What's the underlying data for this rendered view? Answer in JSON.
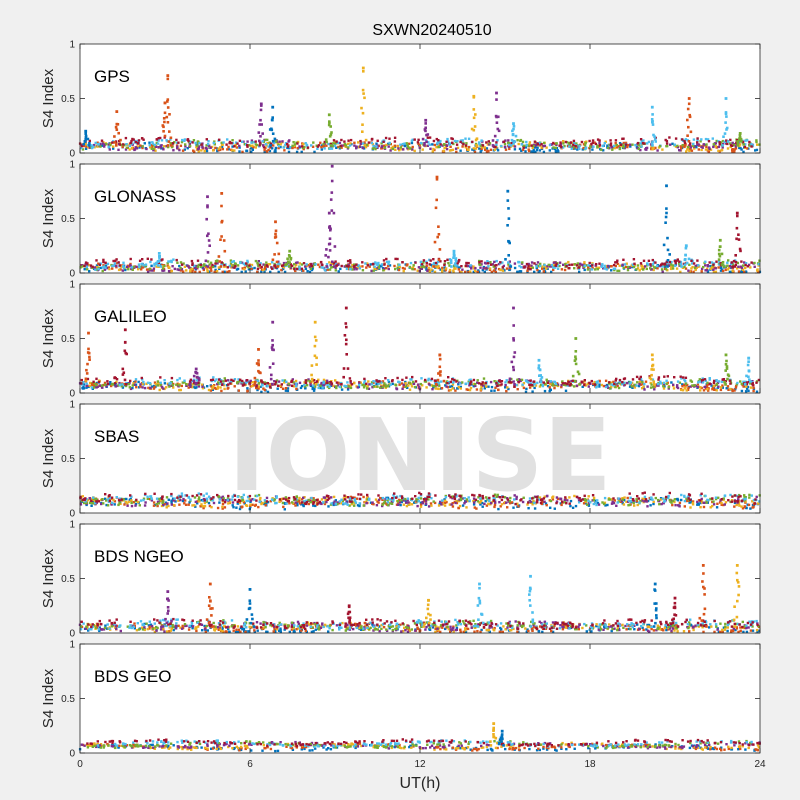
{
  "chart_data": {
    "type": "scatter",
    "title": "SXWN20240510",
    "xlabel": "UT(h)",
    "xlim": [
      0,
      24
    ],
    "xticks": [
      "0",
      "6",
      "12",
      "18",
      "24"
    ],
    "ylabel": "S4 Index",
    "ylim": [
      0,
      1
    ],
    "yticks": [
      "0",
      "0.5",
      "1"
    ],
    "watermark": "IONISE",
    "grid": false,
    "colors": [
      "#0072bd",
      "#d95319",
      "#edb120",
      "#7e2f8e",
      "#77ac30",
      "#4dbeee",
      "#a2142f"
    ],
    "panels": [
      {
        "label": "GPS",
        "baseline": 0.07,
        "peaks": [
          {
            "x": 0.2,
            "y": 0.2,
            "series": 0
          },
          {
            "x": 1.3,
            "y": 0.38,
            "series": 1
          },
          {
            "x": 3.0,
            "y": 0.46,
            "series": 1
          },
          {
            "x": 3.1,
            "y": 0.71,
            "series": 1
          },
          {
            "x": 6.4,
            "y": 0.45,
            "series": 3
          },
          {
            "x": 6.8,
            "y": 0.42,
            "series": 0
          },
          {
            "x": 8.8,
            "y": 0.35,
            "series": 4
          },
          {
            "x": 10.0,
            "y": 0.78,
            "series": 2
          },
          {
            "x": 12.2,
            "y": 0.3,
            "series": 3
          },
          {
            "x": 13.9,
            "y": 0.52,
            "series": 2
          },
          {
            "x": 14.7,
            "y": 0.55,
            "series": 3
          },
          {
            "x": 15.3,
            "y": 0.27,
            "series": 5
          },
          {
            "x": 20.2,
            "y": 0.42,
            "series": 5
          },
          {
            "x": 21.5,
            "y": 0.5,
            "series": 1
          },
          {
            "x": 22.8,
            "y": 0.5,
            "series": 5
          },
          {
            "x": 23.3,
            "y": 0.18,
            "series": 4
          }
        ]
      },
      {
        "label": "GLONASS",
        "baseline": 0.06,
        "peaks": [
          {
            "x": 2.8,
            "y": 0.18,
            "series": 5
          },
          {
            "x": 4.5,
            "y": 0.7,
            "series": 3
          },
          {
            "x": 5.0,
            "y": 0.73,
            "series": 1
          },
          {
            "x": 6.9,
            "y": 0.47,
            "series": 1
          },
          {
            "x": 7.4,
            "y": 0.2,
            "series": 4
          },
          {
            "x": 8.8,
            "y": 0.55,
            "series": 3
          },
          {
            "x": 8.9,
            "y": 0.98,
            "series": 3
          },
          {
            "x": 12.6,
            "y": 0.88,
            "series": 1
          },
          {
            "x": 13.2,
            "y": 0.2,
            "series": 5
          },
          {
            "x": 15.1,
            "y": 0.75,
            "series": 0
          },
          {
            "x": 20.7,
            "y": 0.8,
            "series": 0
          },
          {
            "x": 21.4,
            "y": 0.25,
            "series": 5
          },
          {
            "x": 22.6,
            "y": 0.3,
            "series": 4
          },
          {
            "x": 23.2,
            "y": 0.55,
            "series": 6
          }
        ]
      },
      {
        "label": "GALILEO",
        "baseline": 0.08,
        "peaks": [
          {
            "x": 0.3,
            "y": 0.55,
            "series": 1
          },
          {
            "x": 1.6,
            "y": 0.58,
            "series": 6
          },
          {
            "x": 4.1,
            "y": 0.22,
            "series": 3
          },
          {
            "x": 6.3,
            "y": 0.4,
            "series": 1
          },
          {
            "x": 6.8,
            "y": 0.65,
            "series": 3
          },
          {
            "x": 8.3,
            "y": 0.65,
            "series": 2
          },
          {
            "x": 9.4,
            "y": 0.78,
            "series": 6
          },
          {
            "x": 12.7,
            "y": 0.35,
            "series": 1
          },
          {
            "x": 15.3,
            "y": 0.78,
            "series": 3
          },
          {
            "x": 16.2,
            "y": 0.3,
            "series": 5
          },
          {
            "x": 17.5,
            "y": 0.5,
            "series": 4
          },
          {
            "x": 20.2,
            "y": 0.35,
            "series": 2
          },
          {
            "x": 22.8,
            "y": 0.35,
            "series": 4
          },
          {
            "x": 23.6,
            "y": 0.32,
            "series": 5
          }
        ]
      },
      {
        "label": "SBAS",
        "baseline": 0.11,
        "peaks": []
      },
      {
        "label": "BDS NGEO",
        "baseline": 0.06,
        "peaks": [
          {
            "x": 3.1,
            "y": 0.38,
            "series": 3
          },
          {
            "x": 4.6,
            "y": 0.45,
            "series": 1
          },
          {
            "x": 6.0,
            "y": 0.4,
            "series": 0
          },
          {
            "x": 9.5,
            "y": 0.25,
            "series": 6
          },
          {
            "x": 12.3,
            "y": 0.3,
            "series": 2
          },
          {
            "x": 14.1,
            "y": 0.45,
            "series": 5
          },
          {
            "x": 15.9,
            "y": 0.52,
            "series": 5
          },
          {
            "x": 20.3,
            "y": 0.45,
            "series": 0
          },
          {
            "x": 21.0,
            "y": 0.32,
            "series": 6
          },
          {
            "x": 22.0,
            "y": 0.62,
            "series": 1
          },
          {
            "x": 23.2,
            "y": 0.62,
            "series": 2
          }
        ]
      },
      {
        "label": "BDS GEO",
        "baseline": 0.07,
        "peaks": [
          {
            "x": 14.6,
            "y": 0.27,
            "series": 2
          },
          {
            "x": 14.9,
            "y": 0.2,
            "series": 0
          }
        ]
      }
    ]
  }
}
